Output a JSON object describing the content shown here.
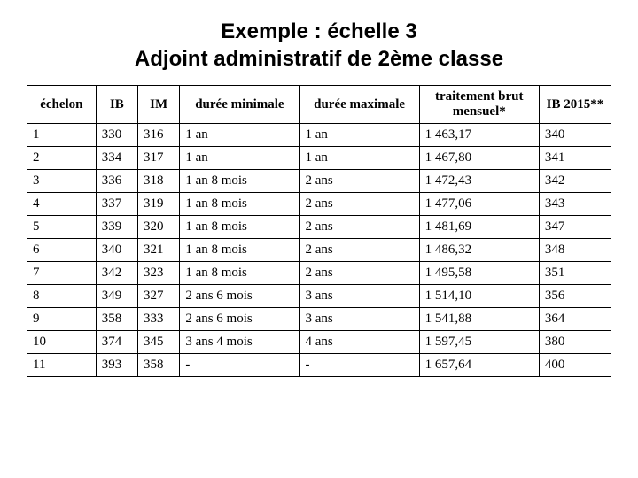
{
  "title_line1": "Exemple : échelle 3",
  "title_line2": "Adjoint administratif de 2ème classe",
  "table": {
    "columns": [
      "échelon",
      "IB",
      "IM",
      "durée minimale",
      "durée maximale",
      "traitement brut mensuel*",
      "IB 2015**"
    ],
    "rows": [
      [
        "1",
        "330",
        "316",
        "1 an",
        "1 an",
        "1 463,17",
        "340"
      ],
      [
        "2",
        "334",
        "317",
        "1 an",
        "1 an",
        "1 467,80",
        "341"
      ],
      [
        "3",
        "336",
        "318",
        "1 an 8 mois",
        "2 ans",
        "1 472,43",
        "342"
      ],
      [
        "4",
        "337",
        "319",
        "1 an 8 mois",
        "2 ans",
        "1 477,06",
        "343"
      ],
      [
        "5",
        "339",
        "320",
        "1 an 8 mois",
        "2 ans",
        "1 481,69",
        "347"
      ],
      [
        "6",
        "340",
        "321",
        "1 an 8 mois",
        "2 ans",
        "1 486,32",
        "348"
      ],
      [
        "7",
        "342",
        "323",
        "1 an 8 mois",
        "2 ans",
        "1 495,58",
        "351"
      ],
      [
        "8",
        "349",
        "327",
        "2 ans 6 mois",
        "3 ans",
        "1 514,10",
        "356"
      ],
      [
        "9",
        "358",
        "333",
        "2 ans 6 mois",
        "3 ans",
        "1 541,88",
        "364"
      ],
      [
        "10",
        "374",
        "345",
        "3 ans 4 mois",
        "4 ans",
        "1 597,45",
        "380"
      ],
      [
        "11",
        "393",
        "358",
        "-",
        "-",
        "1 657,64",
        "400"
      ]
    ]
  },
  "style": {
    "background_color": "#ffffff",
    "border_color": "#000000",
    "text_color": "#000000",
    "title_font_family": "Arial",
    "title_font_size_pt": 18,
    "body_font_family": "Times New Roman",
    "cell_font_size_pt": 11
  }
}
